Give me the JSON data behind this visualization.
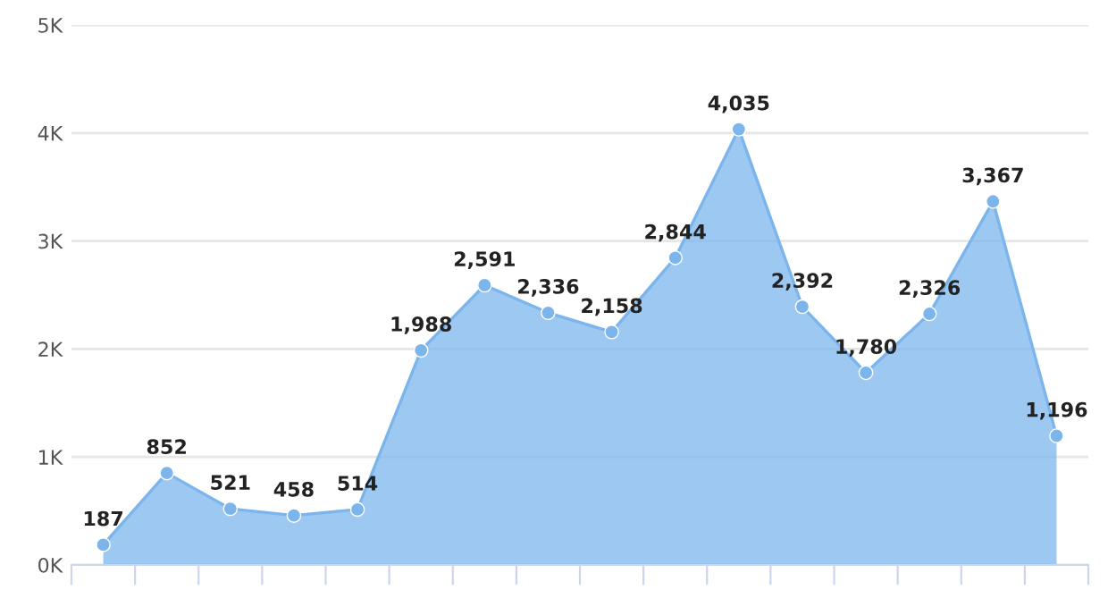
{
  "chart_data": {
    "type": "area",
    "categories": [
      null,
      null,
      null,
      null,
      null,
      null,
      null,
      null,
      null,
      null,
      null,
      null,
      null,
      null,
      null,
      null
    ],
    "series": [
      {
        "color": "#7cb5ec",
        "values": [
          187,
          852,
          521,
          458,
          514,
          1988,
          2591,
          2336,
          2158,
          2844,
          4035,
          2392,
          1780,
          2326,
          3367,
          1196
        ],
        "value_labels": [
          "187",
          "852",
          "521",
          "458",
          "514",
          "1,988",
          "2,591",
          "2,336",
          "2,158",
          "2,844",
          "4,035",
          "2,392",
          "1,780",
          "2,326",
          "3,367",
          "1,196"
        ]
      }
    ],
    "ylim": [
      0,
      5000
    ],
    "yticks": [
      {
        "value": 0,
        "label": "0K"
      },
      {
        "value": 1000,
        "label": "1K"
      },
      {
        "value": 2000,
        "label": "2K"
      },
      {
        "value": 3000,
        "label": "3K"
      },
      {
        "value": 4000,
        "label": "4K"
      },
      {
        "value": 5000,
        "label": "5K"
      }
    ],
    "grid": "y",
    "marker": "circle",
    "line_style": "solid",
    "legend": false
  }
}
